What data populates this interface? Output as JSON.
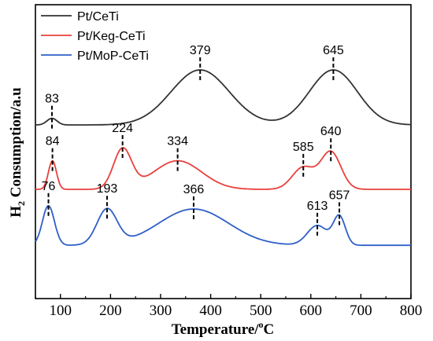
{
  "chart_data": {
    "type": "line",
    "title": "",
    "xlabel": "Temperature/",
    "xlabel_sup": "o",
    "xlabel_unit": "C",
    "ylabel": "H",
    "ylabel_sub": "2",
    "ylabel_rest": " Consumption/a.u",
    "xlim": [
      50,
      800
    ],
    "x_ticks": [
      "100",
      "200",
      "300",
      "400",
      "500",
      "600",
      "700",
      "800"
    ],
    "y_ticks_labeled": false,
    "legend_position": "top-left",
    "colors": {
      "Pt/CeTi": "#333333",
      "Pt/Keg-CeTi": "#e8403c",
      "Pt/MoP-CeTi": "#2f5fc7"
    },
    "series": [
      {
        "name": "Pt/CeTi",
        "baseline": 0.0,
        "peaks": [
          {
            "x": 83,
            "label": "83",
            "height": 0.06,
            "width": 10
          },
          {
            "x": 379,
            "label": "379",
            "height": 0.5,
            "width": 58
          },
          {
            "x": 645,
            "label": "645",
            "height": 0.5,
            "width": 48
          }
        ],
        "end_offset": 0.0
      },
      {
        "name": "Pt/Keg-CeTi",
        "baseline": 0.0,
        "peaks": [
          {
            "x": 84,
            "label": "84",
            "height": 0.26,
            "width": 8
          },
          {
            "x": 224,
            "label": "224",
            "height": 0.36,
            "width": 18
          },
          {
            "x": 334,
            "label": "334",
            "height": 0.26,
            "width": 48
          },
          {
            "x": 585,
            "label": "585",
            "height": 0.2,
            "width": 22
          },
          {
            "x": 640,
            "label": "640",
            "height": 0.34,
            "width": 20
          }
        ],
        "end_offset": 0.0
      },
      {
        "name": "Pt/MoP-CeTi",
        "baseline": 0.02,
        "peaks": [
          {
            "x": 76,
            "label": "76",
            "height": 0.36,
            "width": 12
          },
          {
            "x": 193,
            "label": "193",
            "height": 0.32,
            "width": 20
          },
          {
            "x": 366,
            "label": "366",
            "height": 0.33,
            "width": 70
          },
          {
            "x": 613,
            "label": "613",
            "height": 0.18,
            "width": 20
          },
          {
            "x": 657,
            "label": "657",
            "height": 0.26,
            "width": 12
          }
        ],
        "end_offset": 0.0
      }
    ]
  }
}
